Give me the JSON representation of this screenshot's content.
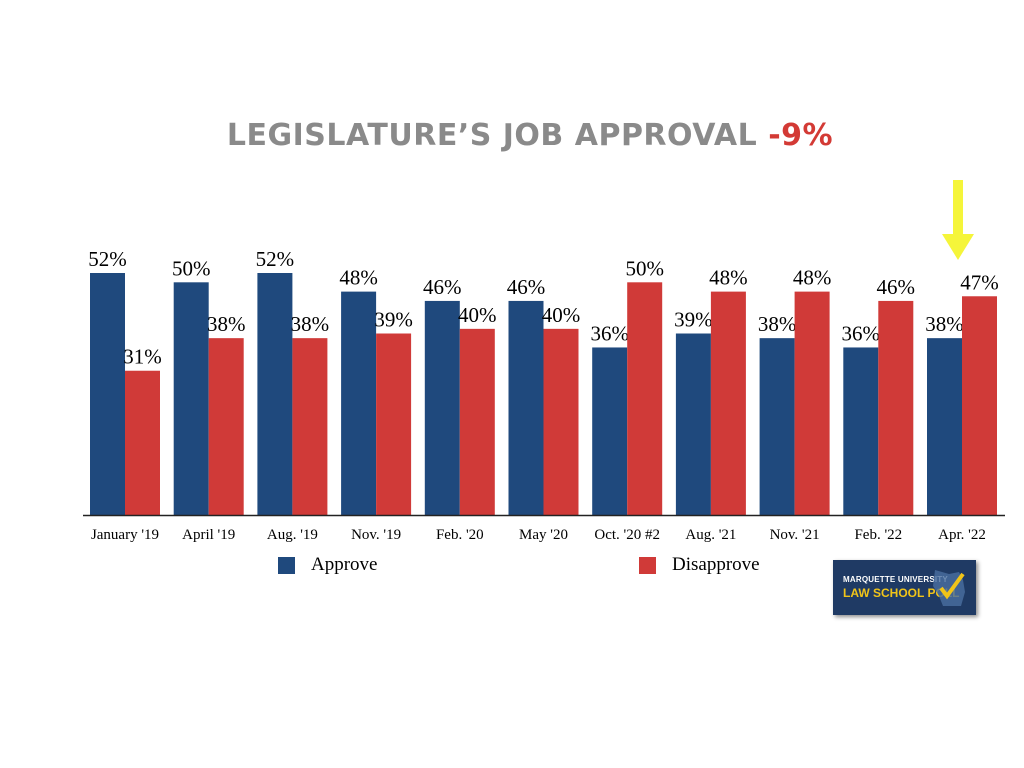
{
  "title": {
    "main": "LEGISLATURE’S JOB APPROVAL",
    "change": "-9%"
  },
  "colors": {
    "approve": "#1f497d",
    "disapprove": "#d03a38",
    "highlight_arrow": "#f5f53a"
  },
  "chart_data": {
    "type": "bar",
    "title": "LEGISLATURE’S JOB APPROVAL -9%",
    "categories": [
      "January '19",
      "April '19",
      "Aug. '19",
      "Nov. '19",
      "Feb. '20",
      "May '20",
      "Oct. '20 #2",
      "Aug. '21",
      "Nov. '21",
      "Feb. '22",
      "Apr. '22"
    ],
    "series": [
      {
        "name": "Approve",
        "values": [
          52,
          50,
          52,
          48,
          46,
          46,
          36,
          39,
          38,
          36,
          38
        ],
        "labels": [
          "52%",
          "50%",
          "52%",
          "48%",
          "46%",
          "46%",
          "36%",
          "39%",
          "38%",
          "36%",
          "38%"
        ]
      },
      {
        "name": "Disapprove",
        "values": [
          31,
          38,
          38,
          39,
          40,
          40,
          50,
          48,
          48,
          46,
          47
        ],
        "labels": [
          "31%",
          "38%",
          "38%",
          "39%",
          "40%",
          "40%",
          "50%",
          "48%",
          "48%",
          "46%",
          "47%"
        ]
      }
    ],
    "ylim": [
      0,
      52
    ],
    "xlabel": "",
    "ylabel": "",
    "legend_position": "bottom",
    "highlight": "Apr. '22"
  },
  "legend": {
    "approve": "Approve",
    "disapprove": "Disapprove"
  },
  "logo": {
    "line1": "MARQUETTE UNIVERSITY",
    "line2": "LAW SCHOOL POLL"
  }
}
